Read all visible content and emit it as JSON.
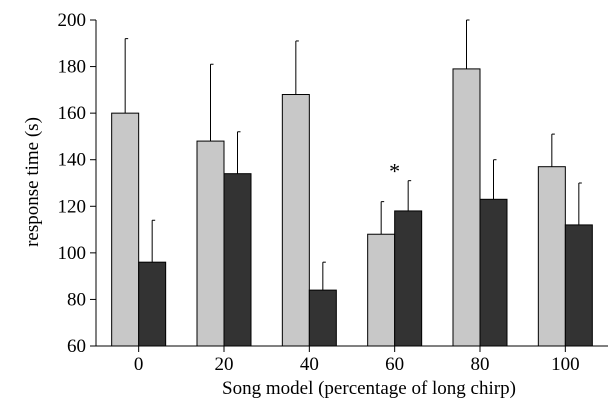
{
  "chart_data": {
    "type": "bar",
    "title": "",
    "xlabel": "Song model (percentage of long chirp)",
    "ylabel": "response time (s)",
    "ylim": [
      60,
      200
    ],
    "yticks": [
      60,
      80,
      100,
      120,
      140,
      160,
      180,
      200
    ],
    "categories": [
      "0",
      "20",
      "40",
      "60",
      "80",
      "100"
    ],
    "series": [
      {
        "color": "#c8c8c8",
        "values": [
          160,
          148,
          168,
          108,
          179,
          137
        ],
        "error_upper": [
          32,
          33,
          23,
          14,
          21,
          14
        ]
      },
      {
        "color": "#333333",
        "values": [
          96,
          134,
          84,
          118,
          123,
          112
        ],
        "error_upper": [
          18,
          18,
          12,
          13,
          17,
          18
        ]
      }
    ],
    "annotations": [
      {
        "text": "*",
        "category": "60"
      }
    ],
    "legend": "none",
    "grid": false
  }
}
